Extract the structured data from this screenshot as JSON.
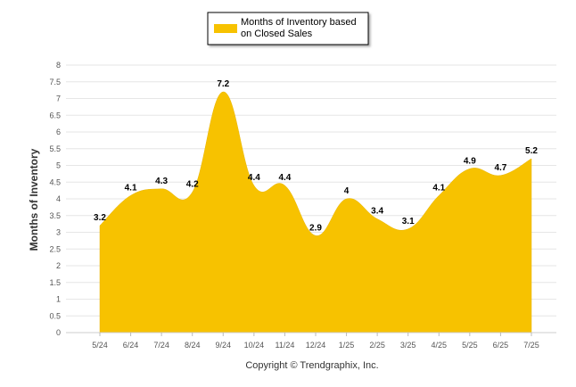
{
  "chart_data": {
    "type": "area",
    "categories": [
      "5/24",
      "6/24",
      "7/24",
      "8/24",
      "9/24",
      "10/24",
      "11/24",
      "12/24",
      "1/25",
      "2/25",
      "3/25",
      "4/25",
      "5/25",
      "6/25",
      "7/25"
    ],
    "series": [
      {
        "name": "Months of Inventory based on Closed Sales",
        "values": [
          3.2,
          4.1,
          4.3,
          4.2,
          7.2,
          4.4,
          4.4,
          2.9,
          4,
          3.4,
          3.1,
          4.1,
          4.9,
          4.7,
          5.2
        ],
        "value_labels": [
          "3.2",
          "4.1",
          "4.3",
          "4.2",
          "7.2",
          "4.4",
          "4.4",
          "2.9",
          "4",
          "3.4",
          "3.1",
          "4.1",
          "4.9",
          "4.7",
          "5.2"
        ],
        "color": "#F7C200"
      }
    ],
    "ylabel": "Months of Inventory",
    "ylim": [
      0,
      8
    ],
    "yticks": [
      "0",
      "0.5",
      "1",
      "1.5",
      "2",
      "2.5",
      "3",
      "3.5",
      "4",
      "4.5",
      "5",
      "5.5",
      "6",
      "6.5",
      "7",
      "7.5",
      "8"
    ],
    "grid": true,
    "legend": {
      "position": "top-center",
      "line1": "Months of Inventory based",
      "line2": "on Closed Sales"
    },
    "copyright": "Copyright © Trendgraphix, Inc."
  }
}
